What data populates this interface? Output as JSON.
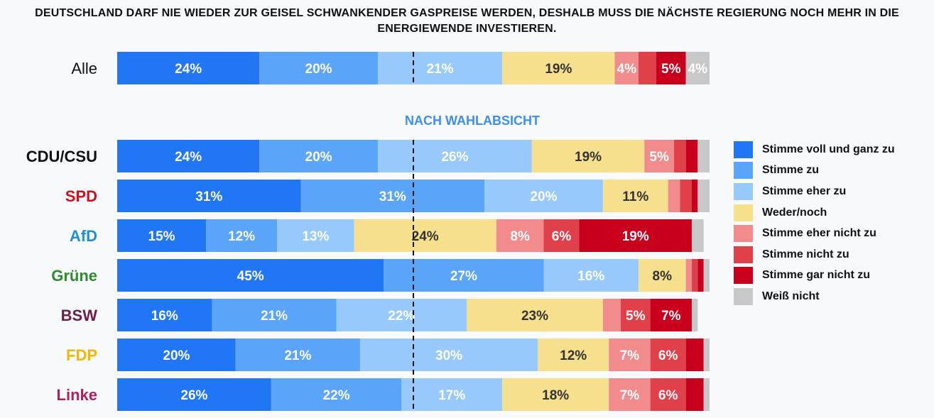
{
  "chart_data": {
    "type": "bar",
    "orientation": "horizontal",
    "stacked": true,
    "title": "DEUTSCHLAND DARF NIE WIEDER ZUR GEISEL SCHWANKENDER GASPREISE WERDEN, DESHALB MUSS DIE NÄCHSTE REGIERUNG NOCH MEHR IN DIE ENERGIEWENDE INVESTIEREN.",
    "section_label": "NACH WAHLABSICHT",
    "categories": [
      "Alle",
      "CDU/CSU",
      "SPD",
      "AfD",
      "Grüne",
      "BSW",
      "FDP",
      "Linke"
    ],
    "category_colors": [
      "#111111",
      "#111111",
      "#d0101e",
      "#1f8fd0",
      "#2e8b2e",
      "#6b1d45",
      "#f2b705",
      "#b01f5f"
    ],
    "series": [
      {
        "name": "Stimme voll und ganz zu",
        "color": "#2176f5",
        "values": [
          24,
          24,
          31,
          15,
          45,
          16,
          20,
          26
        ]
      },
      {
        "name": "Stimme zu",
        "color": "#5aa4fa",
        "values": [
          20,
          20,
          31,
          12,
          27,
          21,
          21,
          22
        ]
      },
      {
        "name": "Stimme eher zu",
        "color": "#98c9fc",
        "values": [
          21,
          26,
          20,
          13,
          16,
          22,
          30,
          17
        ]
      },
      {
        "name": "Weder/noch",
        "color": "#f6df8d",
        "values": [
          19,
          19,
          11,
          24,
          8,
          23,
          12,
          18
        ]
      },
      {
        "name": "Stimme eher nicht zu",
        "color": "#f28b8b",
        "values": [
          4,
          5,
          2,
          8,
          1,
          3,
          7,
          7
        ]
      },
      {
        "name": "Stimme nicht zu",
        "color": "#e0404a",
        "values": [
          3,
          2,
          2,
          6,
          1,
          5,
          6,
          6
        ]
      },
      {
        "name": "Stimme gar nicht zu",
        "color": "#c8001e",
        "values": [
          5,
          2,
          1,
          19,
          1,
          7,
          3,
          3
        ]
      },
      {
        "name": "Weiß nicht",
        "color": "#c8c8c8",
        "values": [
          4,
          2,
          2,
          2,
          1,
          1,
          1,
          1
        ]
      }
    ],
    "xlim": [
      0,
      100
    ],
    "reference_line": 50,
    "legend_position": "right"
  }
}
